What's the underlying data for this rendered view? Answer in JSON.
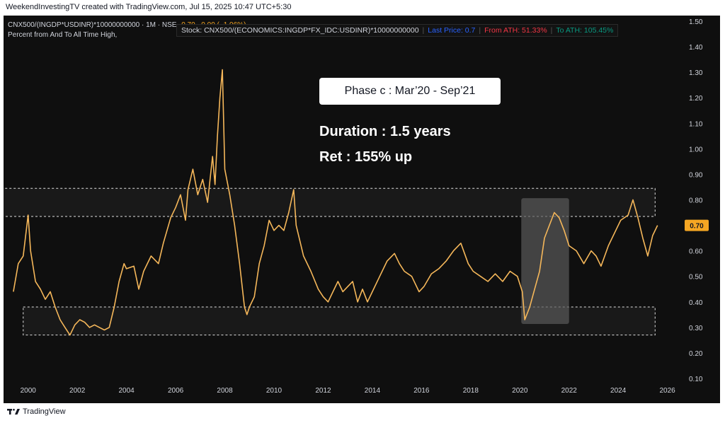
{
  "credit": "WeekendInvestingTV created with TradingView.com, Jul 15, 2025 10:47 UTC+5:30",
  "header": {
    "symbol_line": "CNX500/(INGDP*USDINR)*10000000000 · 1M · NSE",
    "values_line": "0.70 −0.00 (−1.06%)",
    "subtitle": "Percent from And To All Time High,"
  },
  "stock_info": {
    "stock_label": "Stock: CNX500/(ECONOMICS:INGDP*FX_IDC:USDINR)*10000000000",
    "last_price_label": "Last Price: 0.7",
    "from_ath_label": "From ATH:",
    "from_ath_value": "51.33%",
    "to_ath_label": "To ATH:",
    "to_ath_value": "105.45%"
  },
  "annotations": {
    "phase": "Phase c : Mar’20 - Sep’21",
    "duration": "Duration : 1.5 years",
    "return": "Ret : 155% up"
  },
  "footer": {
    "brand": "TradingView"
  },
  "colors": {
    "line": "#f5b75a",
    "background": "#0f0f0f",
    "grid": "#1e1e1e",
    "last_price_badge": "#f5a623",
    "highlight": "#5a5a5a"
  },
  "chart_data": {
    "type": "line",
    "ylim": [
      0.1,
      1.5
    ],
    "xlim": [
      1999.0,
      2026.5
    ],
    "y_ticks": [
      "0.10",
      "0.20",
      "0.30",
      "0.40",
      "0.50",
      "0.60",
      "0.70",
      "0.80",
      "0.90",
      "1.00",
      "1.10",
      "1.20",
      "1.30",
      "1.40",
      "1.50"
    ],
    "x_ticks": [
      "2000",
      "2002",
      "2004",
      "2006",
      "2008",
      "2010",
      "2012",
      "2014",
      "2016",
      "2018",
      "2020",
      "2022",
      "2024",
      "2026"
    ],
    "last_price_badge": "0.70",
    "grid": false,
    "series": [
      {
        "x": [
          1999.4,
          1999.6,
          1999.8,
          2000.0,
          2000.1,
          2000.3,
          2000.5,
          2000.7,
          2000.9,
          2001.1,
          2001.3,
          2001.5,
          2001.7,
          2001.9,
          2002.1,
          2002.3,
          2002.5,
          2002.7,
          2002.9,
          2003.1,
          2003.3,
          2003.5,
          2003.7,
          2003.9,
          2004.0,
          2004.3,
          2004.5,
          2004.7,
          2005.0,
          2005.3,
          2005.5,
          2005.8,
          2006.0,
          2006.2,
          2006.4,
          2006.5,
          2006.7,
          2006.9,
          2007.1,
          2007.3,
          2007.5,
          2007.6,
          2007.7,
          2007.8,
          2007.9,
          2008.0,
          2008.2,
          2008.4,
          2008.6,
          2008.8,
          2008.9,
          2009.0,
          2009.2,
          2009.4,
          2009.6,
          2009.8,
          2010.0,
          2010.2,
          2010.4,
          2010.6,
          2010.8,
          2010.9,
          2011.2,
          2011.5,
          2011.8,
          2012.0,
          2012.2,
          2012.4,
          2012.6,
          2012.8,
          2013.0,
          2013.2,
          2013.4,
          2013.6,
          2013.8,
          2014.0,
          2014.3,
          2014.6,
          2014.9,
          2015.1,
          2015.3,
          2015.6,
          2015.9,
          2016.1,
          2016.4,
          2016.7,
          2017.0,
          2017.3,
          2017.6,
          2017.9,
          2018.1,
          2018.4,
          2018.7,
          2019.0,
          2019.3,
          2019.6,
          2019.9,
          2020.1,
          2020.2,
          2020.4,
          2020.6,
          2020.8,
          2021.0,
          2021.2,
          2021.4,
          2021.6,
          2021.8,
          2022.0,
          2022.3,
          2022.6,
          2022.9,
          2023.1,
          2023.3,
          2023.6,
          2023.9,
          2024.1,
          2024.4,
          2024.6,
          2024.8,
          2025.0,
          2025.2,
          2025.4,
          2025.6
        ],
        "y": [
          0.44,
          0.55,
          0.58,
          0.74,
          0.6,
          0.48,
          0.45,
          0.41,
          0.44,
          0.38,
          0.33,
          0.3,
          0.27,
          0.31,
          0.33,
          0.32,
          0.3,
          0.31,
          0.3,
          0.29,
          0.3,
          0.38,
          0.48,
          0.55,
          0.53,
          0.54,
          0.45,
          0.52,
          0.58,
          0.55,
          0.63,
          0.73,
          0.77,
          0.82,
          0.72,
          0.84,
          0.92,
          0.82,
          0.88,
          0.79,
          0.97,
          0.86,
          1.05,
          1.2,
          1.31,
          0.92,
          0.82,
          0.7,
          0.55,
          0.38,
          0.35,
          0.38,
          0.42,
          0.55,
          0.62,
          0.72,
          0.68,
          0.7,
          0.68,
          0.75,
          0.84,
          0.7,
          0.58,
          0.52,
          0.45,
          0.42,
          0.4,
          0.44,
          0.48,
          0.44,
          0.46,
          0.48,
          0.4,
          0.45,
          0.4,
          0.44,
          0.5,
          0.56,
          0.59,
          0.55,
          0.52,
          0.5,
          0.44,
          0.46,
          0.51,
          0.53,
          0.56,
          0.6,
          0.63,
          0.55,
          0.52,
          0.5,
          0.48,
          0.51,
          0.48,
          0.52,
          0.5,
          0.44,
          0.33,
          0.38,
          0.45,
          0.52,
          0.65,
          0.7,
          0.75,
          0.73,
          0.68,
          0.62,
          0.6,
          0.55,
          0.6,
          0.58,
          0.54,
          0.62,
          0.68,
          0.72,
          0.74,
          0.8,
          0.73,
          0.65,
          0.58,
          0.66,
          0.7
        ]
      }
    ],
    "zones": [
      {
        "label": "resistance band",
        "y_low": 0.735,
        "y_high": 0.845,
        "x_start": 1998.2,
        "x_end": 2025.5
      },
      {
        "label": "support band",
        "y_low": 0.27,
        "y_high": 0.38,
        "x_start": 1999.8,
        "x_end": 2025.5
      },
      {
        "label": "phase c highlight",
        "y_low": 0.33,
        "y_high": 0.79,
        "x_start": 2020.0,
        "x_end": 2022.0
      }
    ]
  }
}
